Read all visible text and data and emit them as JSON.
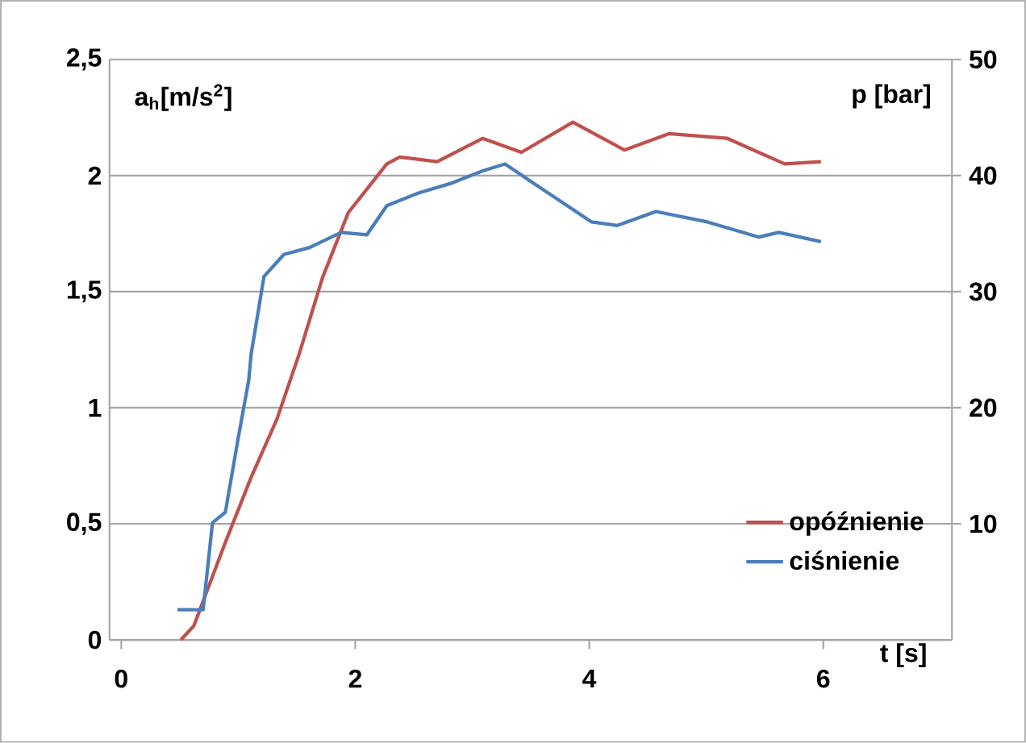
{
  "chart_data": {
    "type": "line",
    "xlabel": "t [s]",
    "ylabel": "a$_{h}$[m/s$^{2}$]",
    "y2label": "p [bar]",
    "xlim": [
      -0.1,
      7.1
    ],
    "xticks": [
      0,
      2,
      4,
      6
    ],
    "ylim": [
      0,
      2.5
    ],
    "yticks": [
      0,
      {
        "value": 0.5,
        "label": "0,5"
      },
      1,
      {
        "value": 1.5,
        "label": "1,5"
      },
      2,
      {
        "value": 2.5,
        "label": "2,5"
      }
    ],
    "y2lim": [
      0,
      50
    ],
    "y2ticks": [
      10,
      20,
      30,
      40,
      50
    ],
    "grid": "y",
    "legend": "bottom right",
    "marker": "none",
    "line_style": "solid",
    "series": [
      {
        "name": "opóźnienie",
        "color": "#c0504d",
        "x": [
          0.51,
          0.62,
          0.89,
          1.11,
          1.33,
          1.52,
          1.72,
          1.94,
          2.27,
          2.38,
          2.7,
          3.09,
          3.42,
          3.86,
          4.3,
          4.68,
          5.18,
          5.67,
          5.98
        ],
        "values": [
          0,
          0.06,
          0.42,
          0.7,
          0.95,
          1.23,
          1.56,
          1.84,
          2.05,
          2.08,
          2.06,
          2.16,
          2.1,
          2.23,
          2.11,
          2.18,
          2.16,
          2.05,
          2.06
        ]
      },
      {
        "name": "ciśnienie",
        "color": "#4a7ebb",
        "axis": "y2",
        "x": [
          0.48,
          0.7,
          0.78,
          0.89,
          1.0,
          1.09,
          1.11,
          1.22,
          1.39,
          1.61,
          1.88,
          2.1,
          2.27,
          2.54,
          2.81,
          3.09,
          3.28,
          3.53,
          4.02,
          4.24,
          4.57,
          5.01,
          5.45,
          5.62,
          5.98
        ],
        "values": [
          2.6,
          2.6,
          10.1,
          11,
          17.4,
          22.4,
          24.6,
          31.3,
          33.2,
          33.8,
          35.1,
          34.9,
          37.4,
          38.5,
          39.3,
          40.4,
          41,
          39.3,
          36,
          35.7,
          36.9,
          36,
          34.7,
          35.1,
          34.3
        ]
      }
    ]
  }
}
